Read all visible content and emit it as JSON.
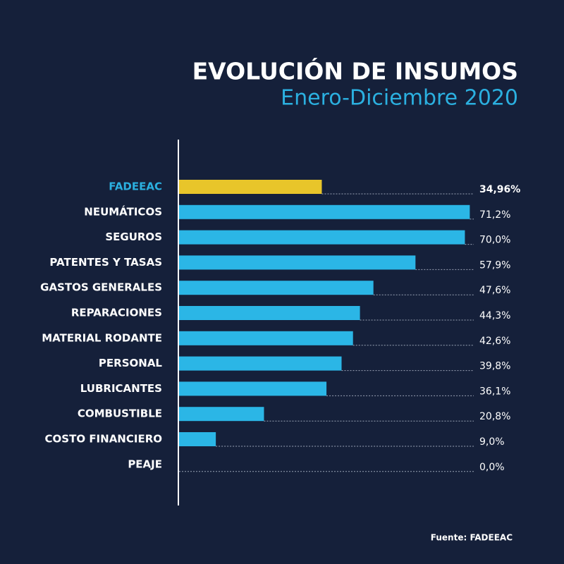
{
  "chart_data": {
    "type": "bar",
    "orientation": "horizontal",
    "title": "EVOLUCIÓN DE INSUMOS",
    "subtitle": "Enero-Diciembre 2020",
    "source": "Fuente: FADEEAC",
    "categories": [
      "FADEEAC",
      "NEUMÁTICOS",
      "SEGUROS",
      "PATENTES Y TASAS",
      "GASTOS GENERALES",
      "REPARACIONES",
      "MATERIAL RODANTE",
      "PERSONAL",
      "LUBRICANTES",
      "COMBUSTIBLE",
      "COSTO FINANCIERO",
      "PEAJE"
    ],
    "values": [
      34.96,
      71.2,
      70.0,
      57.9,
      47.6,
      44.3,
      42.6,
      39.8,
      36.1,
      20.8,
      9.0,
      0.0
    ],
    "value_labels": [
      "34,96%",
      "71,2%",
      "70,0%",
      "57,9%",
      "47,6%",
      "44,3%",
      "42,6%",
      "39,8%",
      "36,1%",
      "20,8%",
      "9,0%",
      "0,0%"
    ],
    "colors": [
      "#e8c52a",
      "#2bb6e6",
      "#2bb6e6",
      "#2bb6e6",
      "#2bb6e6",
      "#2bb6e6",
      "#2bb6e6",
      "#2bb6e6",
      "#2bb6e6",
      "#2bb6e6",
      "#2bb6e6",
      "#2bb6e6"
    ],
    "xlim": [
      0,
      72
    ]
  }
}
